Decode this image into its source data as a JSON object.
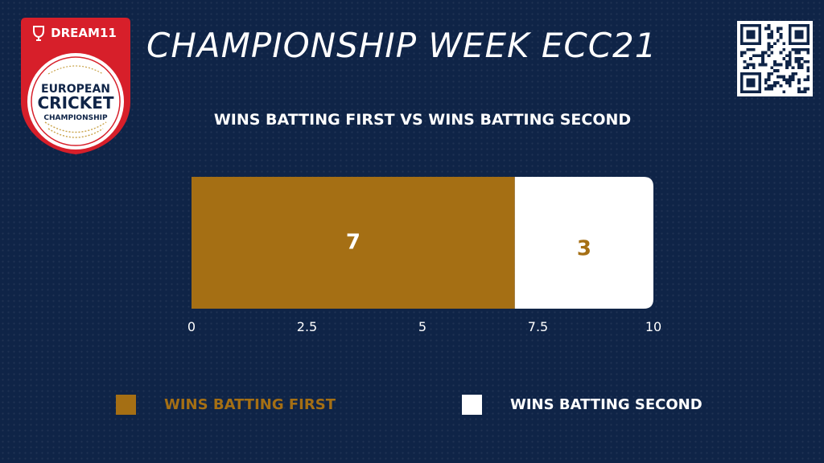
{
  "header": {
    "title": "CHAMPIONSHIP WEEK ECC21"
  },
  "logo": {
    "brand": "DREAM11",
    "line1": "EUROPEAN",
    "line2": "CRICKET",
    "line3": "CHAMPIONSHIP"
  },
  "colors": {
    "background": "#0f2447",
    "first": "#a56f14",
    "second": "#ffffff",
    "logo_red": "#d71f2a"
  },
  "chart_data": {
    "type": "bar",
    "orientation": "horizontal-stacked",
    "title": "WINS BATTING FIRST VS WINS BATTING SECOND",
    "series": [
      {
        "name": "WINS BATTING FIRST",
        "values": [
          7
        ]
      },
      {
        "name": "WINS BATTING SECOND",
        "values": [
          3
        ]
      }
    ],
    "data_labels": [
      "7",
      "3"
    ],
    "xlim": [
      0,
      10
    ],
    "x_ticks": [
      "0",
      "2.5",
      "5",
      "7.5",
      "10"
    ],
    "grid": false,
    "legend_position": "bottom"
  }
}
